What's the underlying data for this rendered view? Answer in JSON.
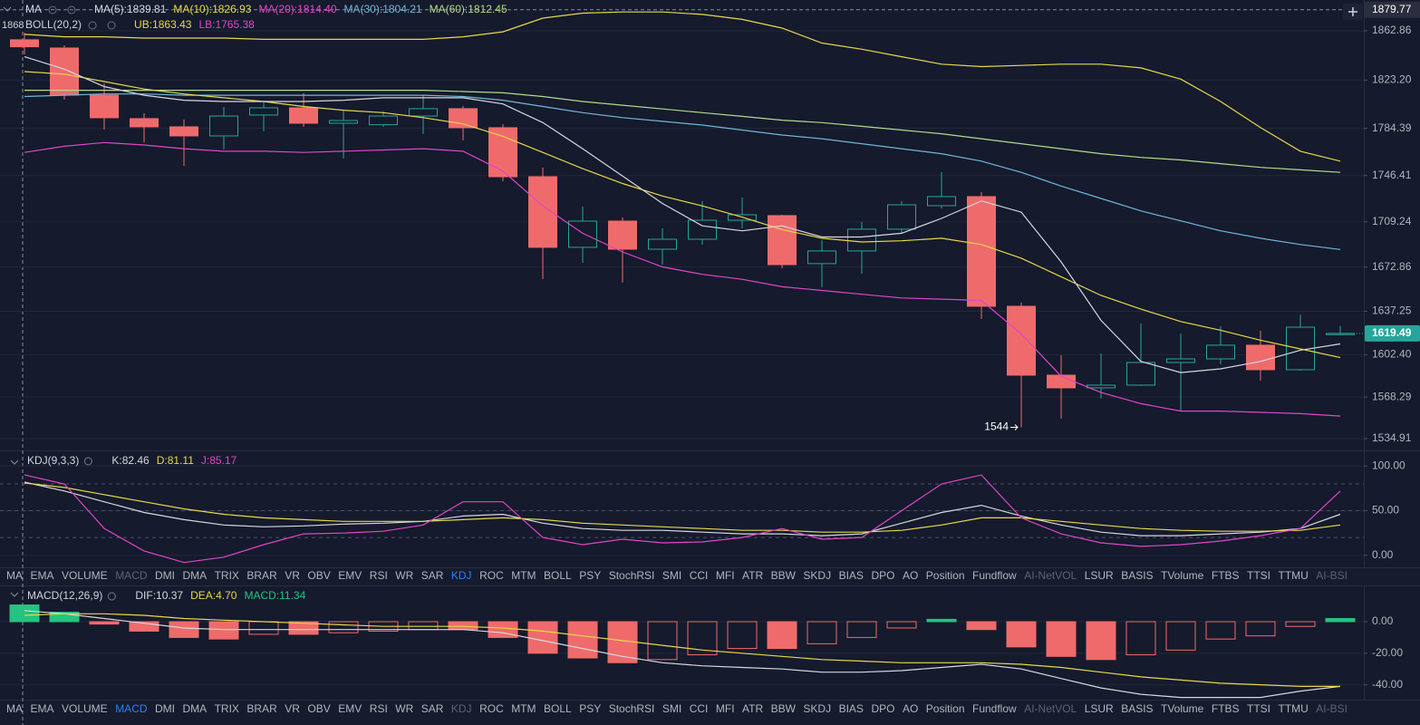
{
  "chart_data": [
    {
      "type": "candlestick",
      "open": [
        1855.6,
        1849.0,
        1811.1,
        1792.2,
        1785.6,
        1778.3,
        1795.1,
        1800.9,
        1788.5,
        1787.3,
        1794.3,
        1800.2,
        1784.9,
        1745.5,
        1688.7,
        1709.8,
        1687.2,
        1695.2,
        1710.5,
        1714.2,
        1675.6,
        1685.8,
        1703.3,
        1722.2,
        1729.5,
        1641.3,
        1585.9,
        1575.7,
        1577.9,
        1596.1,
        1599.0,
        1610.0,
        1590.3,
        1618.5
      ],
      "high": [
        1861.4,
        1851.2,
        1820.6,
        1796.5,
        1791.4,
        1801.6,
        1805.3,
        1812.6,
        1798.7,
        1798.0,
        1811.1,
        1802.4,
        1787.8,
        1752.8,
        1721.5,
        1712.7,
        1704.0,
        1725.9,
        1728.8,
        1714.9,
        1694.5,
        1709.1,
        1725.9,
        1749.1,
        1733.1,
        1644.2,
        1601.9,
        1603.4,
        1627.4,
        1619.4,
        1625.3,
        1621.6,
        1634.5,
        1625.5
      ],
      "low": [
        1843.9,
        1807.5,
        1783.4,
        1773.2,
        1754.3,
        1767.4,
        1782.0,
        1785.6,
        1760.1,
        1785.6,
        1779.8,
        1774.7,
        1741.9,
        1663.2,
        1676.3,
        1660.3,
        1674.8,
        1690.9,
        1704.0,
        1671.9,
        1656.6,
        1667.5,
        1699.6,
        1720.0,
        1631.1,
        1544,
        1550.9,
        1567.0,
        1577.2,
        1557.5,
        1594.7,
        1581.5,
        1589.6,
        1618.0
      ],
      "close": [
        1850.0,
        1811.1,
        1792.9,
        1785.6,
        1778.3,
        1794.3,
        1800.9,
        1788.5,
        1790.7,
        1794.3,
        1800.2,
        1784.9,
        1745.5,
        1688.7,
        1709.8,
        1687.2,
        1695.2,
        1710.5,
        1714.9,
        1674.8,
        1685.8,
        1703.3,
        1722.9,
        1729.5,
        1641.3,
        1585.9,
        1575.7,
        1577.9,
        1596.1,
        1599.0,
        1610.0,
        1590.3,
        1624.5,
        1619.49
      ],
      "up_color": "#26a69a",
      "down_color": "#ef6b6b",
      "series": [
        {
          "color": "#6fb6d8",
          "values": [
            1810,
            1811,
            1812,
            1812,
            1811,
            1811,
            1811,
            1811,
            1811,
            1811,
            1811,
            1810,
            1807,
            1802,
            1797,
            1793,
            1790,
            1787,
            1783,
            1779,
            1776,
            1772,
            1768,
            1764,
            1758,
            1749,
            1738,
            1728,
            1718,
            1710,
            1702,
            1696,
            1691,
            1687
          ]
        },
        {
          "color": "#b4d98a",
          "values": [
            1815,
            1815,
            1815,
            1815,
            1815,
            1815,
            1815,
            1815,
            1815,
            1815,
            1815,
            1814,
            1813,
            1810,
            1806,
            1803,
            1800,
            1797,
            1794,
            1791,
            1789,
            1786,
            1783,
            1780,
            1776,
            1772,
            1768,
            1764,
            1761,
            1759,
            1756,
            1753,
            1751,
            1749
          ]
        },
        {
          "color": "#e6d84a",
          "values": [
            1860,
            1858,
            1858,
            1857,
            1857,
            1857,
            1856,
            1856,
            1856,
            1856,
            1856,
            1858,
            1862,
            1873,
            1877,
            1878,
            1878,
            1876,
            1872,
            1865,
            1853,
            1848,
            1842,
            1836,
            1834,
            1835,
            1836,
            1836,
            1833,
            1824,
            1806,
            1785,
            1766,
            1758
          ]
        },
        {
          "color": "#e046c8",
          "values": [
            1765,
            1770,
            1773,
            1771,
            1768,
            1766,
            1766,
            1765,
            1766,
            1767,
            1768,
            1766,
            1750,
            1722,
            1700,
            1685,
            1673,
            1667,
            1663,
            1657,
            1654,
            1651,
            1648,
            1647,
            1646,
            1619,
            1585,
            1572,
            1563,
            1557,
            1557,
            1556,
            1555,
            1553
          ]
        },
        {
          "color": "#e6d84a",
          "values": [
            1830,
            1828,
            1822,
            1816,
            1812,
            1809,
            1806,
            1802,
            1799,
            1797,
            1793,
            1788,
            1778,
            1765,
            1752,
            1740,
            1730,
            1722,
            1713,
            1703,
            1696,
            1693,
            1694,
            1696,
            1691,
            1680,
            1665,
            1650,
            1639,
            1629,
            1622,
            1614,
            1607,
            1600
          ]
        },
        {
          "color": "#d6d8e0",
          "values": [
            1842,
            1832,
            1818,
            1811,
            1807,
            1806,
            1806,
            1806,
            1807,
            1809,
            1809,
            1809,
            1804,
            1789,
            1768,
            1746,
            1724,
            1706,
            1702,
            1706,
            1697,
            1697,
            1700,
            1712,
            1726,
            1717,
            1677,
            1630,
            1597,
            1588,
            1591,
            1597,
            1606,
            1611
          ]
        }
      ],
      "ylim": [
        1525.4,
        1887.6
      ],
      "yticks": [
        1862.86,
        {
          "value": 1823.2,
          "label": "1823.20"
        },
        1784.39,
        1746.41,
        1709.24,
        1672.86,
        1637.25,
        {
          "value": 1602.4,
          "label": "1602.40"
        },
        1568.29,
        1534.91
      ],
      "crosshair_price": 1879.77,
      "left_edge_label": "1868",
      "header_rows": [
        [
          {
            "text": "MA",
            "color": "#d1d4dc"
          },
          {
            "text": "MA(5):1839.81",
            "color": "#d6d8e0"
          },
          {
            "text": "MA(10):1826.93",
            "color": "#e6d84a"
          },
          {
            "text": "MA(20):1814.40",
            "color": "#e046c8"
          },
          {
            "text": "MA(30):1804.21",
            "color": "#6fb6d8"
          },
          {
            "text": "MA(60):1812.45",
            "color": "#b4d98a"
          }
        ],
        [
          {
            "text": "BOLL(20,2)",
            "color": "#d1d4dc"
          },
          {
            "text": "UB:1863.43",
            "color": "#e6d84a"
          },
          {
            "text": "LB:1765.38",
            "color": "#e046c8"
          }
        ]
      ]
    },
    {
      "type": "line",
      "series": [
        {
          "color": "#d6d8e0",
          "values": [
            82,
            72,
            60,
            48,
            40,
            34,
            32,
            33,
            35,
            36,
            38,
            44,
            46,
            36,
            30,
            28,
            28,
            26,
            24,
            24,
            22,
            24,
            36,
            48,
            56,
            44,
            34,
            26,
            22,
            22,
            24,
            26,
            30,
            46
          ]
        },
        {
          "color": "#e6d84a",
          "values": [
            81,
            76,
            68,
            60,
            52,
            46,
            42,
            40,
            38,
            38,
            38,
            40,
            42,
            40,
            36,
            34,
            32,
            30,
            28,
            28,
            26,
            26,
            28,
            34,
            42,
            42,
            38,
            34,
            30,
            28,
            27,
            27,
            28,
            34
          ]
        },
        {
          "color": "#e046c8",
          "values": [
            90,
            80,
            30,
            5,
            -8,
            -2,
            12,
            24,
            25,
            27,
            34,
            60,
            60,
            20,
            12,
            18,
            14,
            15,
            20,
            30,
            18,
            20,
            50,
            80,
            90,
            42,
            24,
            14,
            10,
            12,
            16,
            22,
            30,
            72
          ]
        }
      ],
      "ylim": [
        -12.4,
        116.5
      ],
      "yticks": [
        {
          "value": 100,
          "label": "100.00"
        },
        {
          "value": 50,
          "label": "50.00"
        },
        {
          "value": 0,
          "label": "0.00"
        }
      ],
      "levels": [
        80,
        50,
        20
      ],
      "header_rows": [
        [
          {
            "text": "KDJ(9,3,3)",
            "color": "#d1d4dc"
          },
          {
            "text": "K:82.46",
            "color": "#d6d8e0"
          },
          {
            "text": "D:81.11",
            "color": "#e6d84a"
          },
          {
            "text": "J:85.17",
            "color": "#e046c8"
          }
        ]
      ]
    },
    {
      "type": "macd",
      "values": [
        10.6,
        6,
        -1.5,
        -6,
        -10,
        -11,
        -8,
        -8,
        -7,
        -6,
        -5,
        -5,
        -10,
        -20,
        -23,
        -26,
        -24,
        -21,
        -17,
        -17,
        -14,
        -10,
        -4,
        1.5,
        -5,
        -16,
        -22,
        -24,
        -21,
        -18,
        -11,
        -9,
        -3,
        2
      ],
      "up_color": "#26c281",
      "down_color": "#ef6b6b",
      "series": [
        {
          "color": "#d6d8e0",
          "values": [
            7,
            5,
            2,
            -1,
            -4,
            -5,
            -5,
            -5,
            -5,
            -5,
            -5,
            -5,
            -7,
            -12,
            -17,
            -22,
            -26,
            -28,
            -29,
            -30,
            -32,
            -32,
            -31,
            -29,
            -27,
            -30,
            -36,
            -42,
            -46,
            -48,
            -48,
            -48,
            -44,
            -41
          ]
        },
        {
          "color": "#e6d84a",
          "values": [
            4,
            5,
            5,
            4,
            2,
            1,
            0,
            -1,
            -2,
            -3,
            -3,
            -3,
            -4,
            -6,
            -9,
            -12,
            -15,
            -18,
            -20,
            -22,
            -24,
            -25,
            -26,
            -26,
            -26,
            -27,
            -29,
            -32,
            -35,
            -37,
            -39,
            -40,
            -41,
            -41
          ]
        }
      ],
      "ylim": [
        -49.4,
        22.4
      ],
      "yticks": [
        {
          "value": 0,
          "label": "0.00"
        },
        {
          "value": -20,
          "label": "-20.00"
        },
        {
          "value": -40,
          "label": "-40.00"
        }
      ],
      "header_rows": [
        [
          {
            "text": "MACD(12,26,9)",
            "color": "#d1d4dc"
          },
          {
            "text": "DIF:10.37",
            "color": "#d6d8e0"
          },
          {
            "text": "DEA:4.70",
            "color": "#e6d84a"
          },
          {
            "text": "MACD:11.34",
            "color": "#26c281"
          }
        ]
      ]
    }
  ],
  "indicator_tabs": [
    "MA",
    "EMA",
    "VOLUME",
    "MACD",
    "DMI",
    "DMA",
    "TRIX",
    "BRAR",
    "VR",
    "OBV",
    "EMV",
    "RSI",
    "WR",
    "SAR",
    "KDJ",
    "ROC",
    "MTM",
    "BOLL",
    "PSY",
    "StochRSI",
    "SMI",
    "CCI",
    "MFI",
    "ATR",
    "BBW",
    "SKDJ",
    "BIAS",
    "DPO",
    "AO",
    "Position",
    "Fundflow",
    "AI-NetVOL",
    "LSUR",
    "BASIS",
    "TVolume",
    "FTBS",
    "TTSI",
    "TTMU",
    "AI-BSI"
  ],
  "indicator_tab_rows": [
    {
      "active": 14,
      "muted": [
        3,
        31,
        38
      ]
    },
    {
      "active": 3,
      "muted": [
        14,
        31,
        38
      ]
    }
  ]
}
